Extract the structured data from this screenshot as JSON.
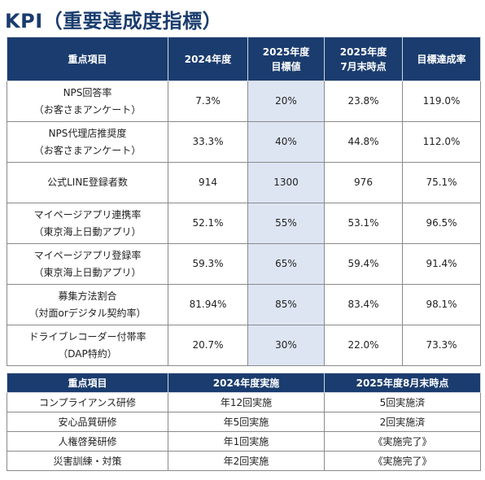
{
  "title": "KPI（重要達成度指標）",
  "kpi": {
    "headers": [
      [
        "重点項目"
      ],
      [
        "2024年度"
      ],
      [
        "2025年度",
        "目標値"
      ],
      [
        "2025年度",
        "7月末時点"
      ],
      [
        "目標達成率"
      ]
    ],
    "rows": [
      {
        "item": [
          "NPS回答率",
          "（お客さまアンケート）"
        ],
        "fy2024": "7.3%",
        "target2025": "20%",
        "jul2025": "23.8%",
        "rate": "119.0%"
      },
      {
        "item": [
          "NPS代理店推奨度",
          "（お客さまアンケート）"
        ],
        "fy2024": "33.3%",
        "target2025": "40%",
        "jul2025": "44.8%",
        "rate": "112.0%"
      },
      {
        "item": [
          "公式LINE登録者数"
        ],
        "fy2024": "914",
        "target2025": "1300",
        "jul2025": "976",
        "rate": "75.1%"
      },
      {
        "item": [
          "マイページアプリ連携率",
          "（東京海上日動アプリ）"
        ],
        "fy2024": "52.1%",
        "target2025": "55%",
        "jul2025": "53.1%",
        "rate": "96.5%"
      },
      {
        "item": [
          "マイページアプリ登録率",
          "（東京海上日動アプリ）"
        ],
        "fy2024": "59.3%",
        "target2025": "65%",
        "jul2025": "59.4%",
        "rate": "91.4%"
      },
      {
        "item": [
          "募集方法割合",
          "（対面orデジタル契約率）"
        ],
        "fy2024": "81.94%",
        "target2025": "85%",
        "jul2025": "83.4%",
        "rate": "98.1%"
      },
      {
        "item": [
          "ドライブレコーダー付帯率",
          "（DAP特約）"
        ],
        "fy2024": "20.7%",
        "target2025": "30%",
        "jul2025": "22.0%",
        "rate": "73.3%"
      }
    ]
  },
  "training": {
    "headers": [
      "重点項目",
      "2024年度実施",
      "2025年度8月末時点"
    ],
    "rows": [
      {
        "item": "コンプライアンス研修",
        "fy2024": "年12回実施",
        "aug2025": "5回実施済"
      },
      {
        "item": "安心品質研修",
        "fy2024": "年5回実施",
        "aug2025": "2回実施済"
      },
      {
        "item": "人権啓発研修",
        "fy2024": "年1回実施",
        "aug2025": "《実施完了》"
      },
      {
        "item": "災害訓練・対策",
        "fy2024": "年2回実施",
        "aug2025": "《実施完了》"
      }
    ]
  },
  "colors": {
    "header_bg": "#1a3c6e",
    "target_col_bg": "#dde5f3",
    "title": "#1a3c6e"
  }
}
